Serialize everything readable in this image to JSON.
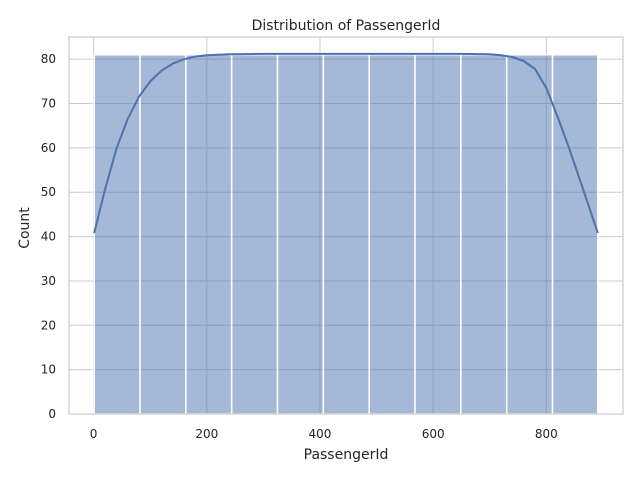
{
  "chart_data": {
    "type": "bar",
    "title": "Distribution of PassengerId",
    "xlabel": "PassengerId",
    "ylabel": "Count",
    "xlim": [
      -43.5,
      935.5
    ],
    "ylim": [
      0,
      85
    ],
    "xticks": [
      0,
      200,
      400,
      600,
      800
    ],
    "yticks": [
      0,
      10,
      20,
      30,
      40,
      50,
      60,
      70,
      80
    ],
    "grid": true,
    "legend": "none",
    "bins": [
      {
        "start": 1,
        "end": 82,
        "count": 81
      },
      {
        "start": 82,
        "end": 163,
        "count": 81
      },
      {
        "start": 163,
        "end": 244,
        "count": 81
      },
      {
        "start": 244,
        "end": 325,
        "count": 81
      },
      {
        "start": 325,
        "end": 406,
        "count": 81
      },
      {
        "start": 406,
        "end": 487,
        "count": 81
      },
      {
        "start": 487,
        "end": 568,
        "count": 81
      },
      {
        "start": 568,
        "end": 649,
        "count": 81
      },
      {
        "start": 649,
        "end": 730,
        "count": 81
      },
      {
        "start": 730,
        "end": 811,
        "count": 81
      },
      {
        "start": 811,
        "end": 891,
        "count": 81
      }
    ],
    "kde": {
      "x": [
        1,
        20,
        40,
        60,
        80,
        100,
        120,
        140,
        160,
        180,
        200,
        240,
        300,
        400,
        500,
        600,
        650,
        700,
        720,
        740,
        760,
        780,
        800,
        820,
        840,
        860,
        880,
        891
      ],
      "y": [
        40.8,
        50.5,
        59.7,
        66.5,
        71.5,
        75.0,
        77.4,
        79.0,
        80.0,
        80.6,
        80.9,
        81.1,
        81.2,
        81.2,
        81.2,
        81.2,
        81.2,
        81.1,
        80.9,
        80.5,
        79.6,
        77.8,
        73.5,
        67.0,
        60.0,
        52.5,
        45.0,
        40.8
      ]
    },
    "colors": {
      "bar_fill": "#4c72b0",
      "bar_fill_opacity": 0.5,
      "bar_edge": "#ffffff",
      "kde_line": "#4c72b0",
      "grid": "#cccccc",
      "spine": "#cccccc"
    }
  }
}
